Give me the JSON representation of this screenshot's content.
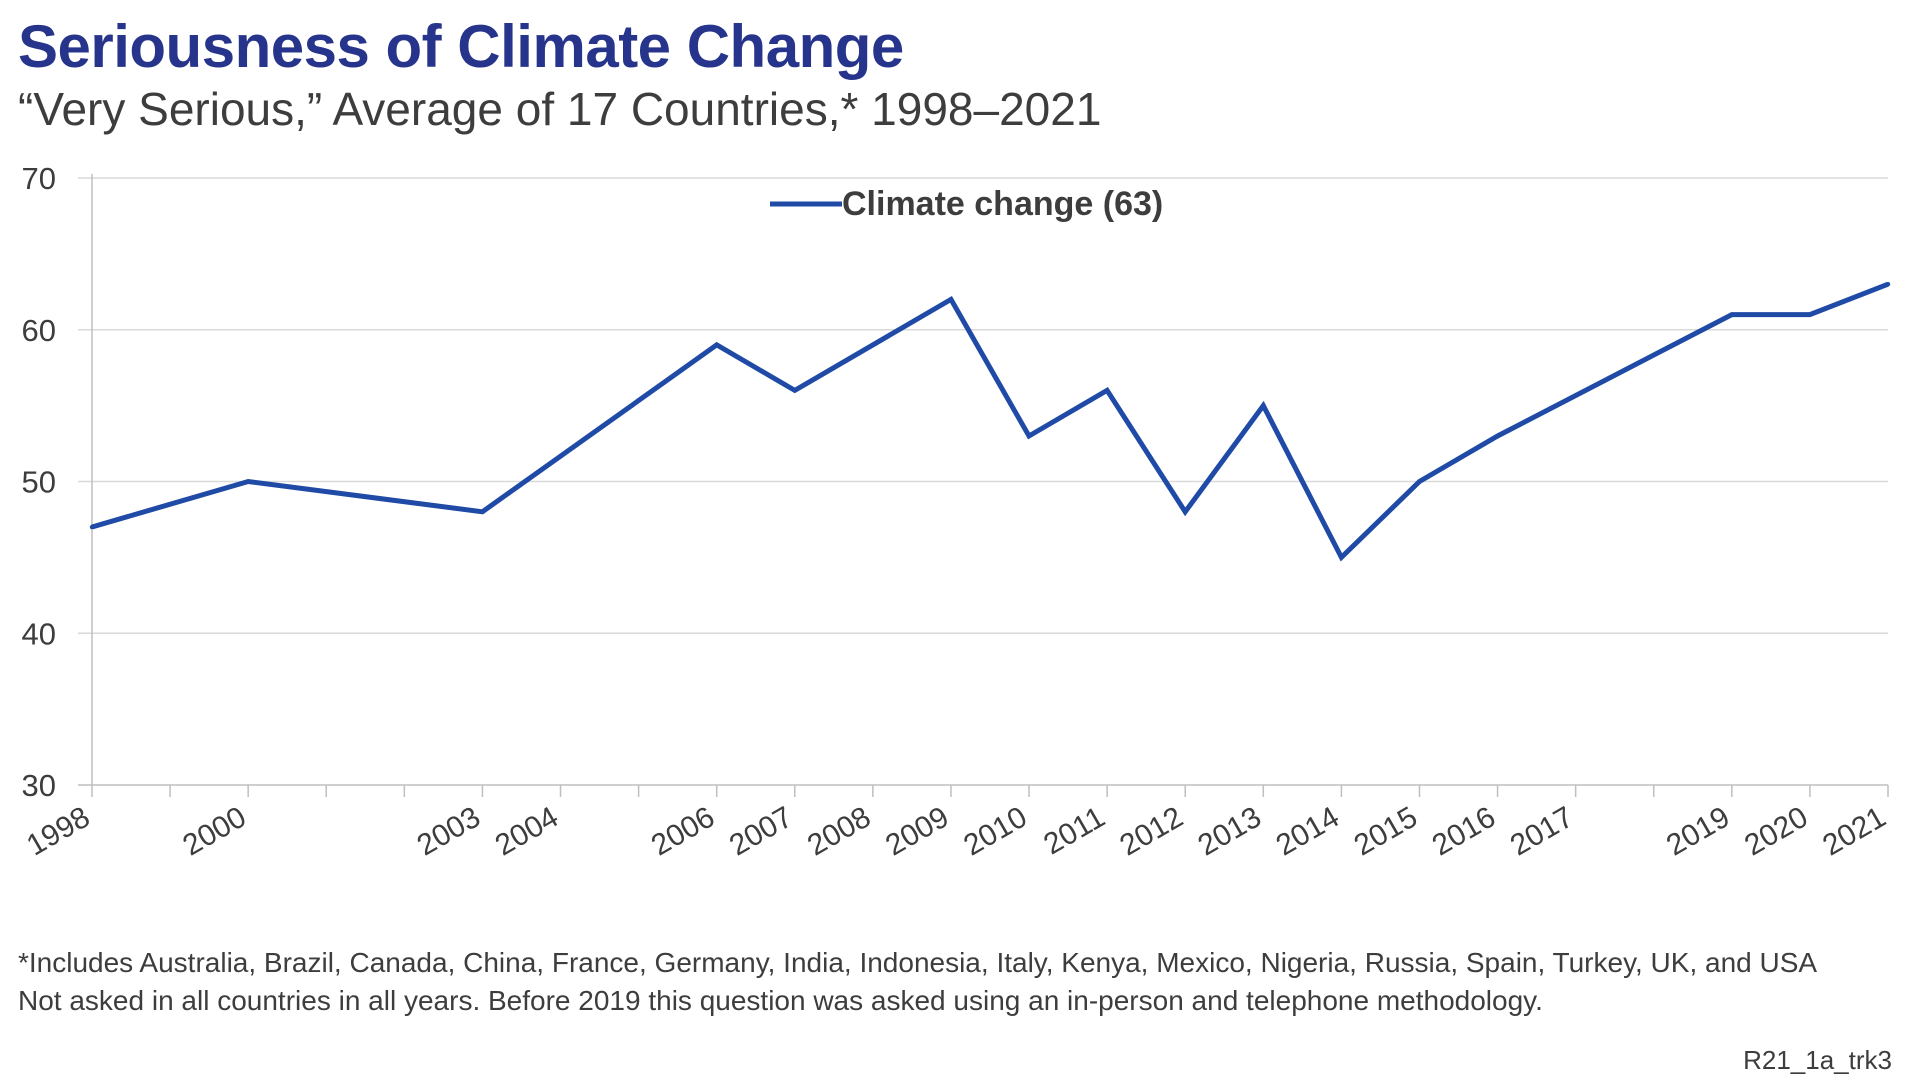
{
  "title": "Seriousness of Climate Change",
  "subtitle": "“Very Serious,” Average of 17 Countries,* 1998–2021",
  "footnotes": [
    "*Includes Australia, Brazil, Canada, China, France, Germany, India, Indonesia, Italy, Kenya, Mexico, Nigeria, Russia, Spain, Turkey, UK, and USA",
    "Not asked in all countries in all years. Before 2019 this question was asked using an in-person and telephone methodology."
  ],
  "source_id": "R21_1a_trk3",
  "colors": {
    "line": "#1f4aa6",
    "title": "#27348b",
    "grid": "#d9d9d9",
    "axis": "#bfbfbf",
    "text": "#3d3d3d"
  },
  "chart_data": {
    "type": "line",
    "title": "Seriousness of Climate Change",
    "subtitle": "“Very Serious,” Average of 17 Countries,* 1998–2021",
    "xlabel": "",
    "ylabel": "",
    "ylim": [
      30,
      70
    ],
    "yticks": [
      30,
      40,
      50,
      60,
      70
    ],
    "xlim": [
      1998,
      2021
    ],
    "x_tick_labels": [
      "1998",
      "2000",
      "2003",
      "2004",
      "2006",
      "2007",
      "2008",
      "2009",
      "2010",
      "2011",
      "2012",
      "2013",
      "2014",
      "2015",
      "2016",
      "2017",
      "2019",
      "2020",
      "2021"
    ],
    "grid": true,
    "legend": "top-center",
    "series": [
      {
        "name": "Climate change (63)",
        "x": [
          1998,
          2000,
          2003,
          2006,
          2007,
          2009,
          2010,
          2011,
          2012,
          2013,
          2014,
          2015,
          2016,
          2019,
          2020,
          2021
        ],
        "y": [
          47,
          50,
          48,
          59,
          56,
          62,
          53,
          56,
          48,
          55,
          45,
          50,
          53,
          61,
          61,
          63
        ]
      }
    ]
  }
}
